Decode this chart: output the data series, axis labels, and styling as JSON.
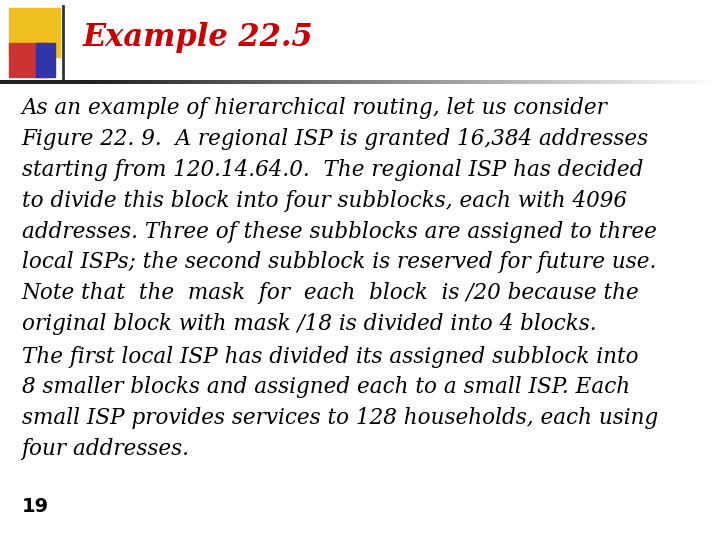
{
  "title": "Example 22.5",
  "title_color": "#cc0000",
  "title_fontsize": 22,
  "bg_color": "#ffffff",
  "paragraph1": "As an example of hierarchical routing, let us consider Figure 22. 9. A regional ISP is granted 16,384 addresses starting from 120.14.64.0. The regional ISP has decided to divide this block into four subblocks, each with 4096 addresses. Three of these subblocks are assigned to three local ISPs; the second subblock is reserved for future use. Note that the mask for each block is /20 because the original block with mask /18 is divided into 4 blocks.",
  "paragraph2": "The first local ISP has divided its assigned subblock into 8 smaller blocks and assigned each to a small ISP. Each small ISP provides services to 128 households, each using four addresses.",
  "footer": "19",
  "text_color": "#000000",
  "text_fontsize": 15.5,
  "footer_fontsize": 14,
  "header_square_yellow": "#f0c020",
  "header_square_red": "#cc3333",
  "header_square_blue": "#3333aa"
}
